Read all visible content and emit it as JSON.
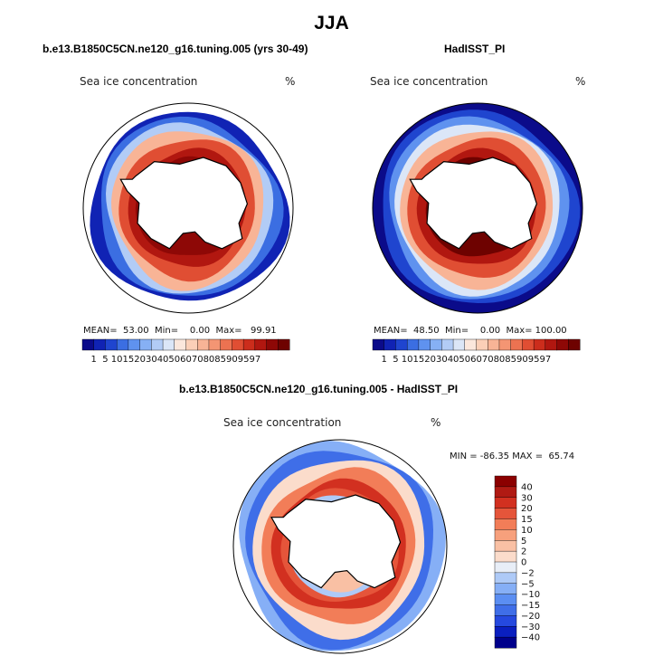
{
  "figure": {
    "title": "JJA",
    "colors": {
      "ice_scale": [
        "#0b0b8a",
        "#1023b4",
        "#1f45cf",
        "#3b6ee2",
        "#5f92ef",
        "#86b0f4",
        "#b2ccf6",
        "#dbe6f7",
        "#fbe7dc",
        "#fbcfb7",
        "#f8b496",
        "#f49573",
        "#ec7251",
        "#e04e33",
        "#cc2d1c",
        "#b11710",
        "#8e0806",
        "#6e0200"
      ],
      "diff_scale": [
        "#00008b",
        "#0a1fc0",
        "#2549df",
        "#3f6ee8",
        "#5b8ef2",
        "#86aff6",
        "#aecaf7",
        "#e8eef7",
        "#fbdccb",
        "#f9c0a4",
        "#f7a07c",
        "#f27d58",
        "#e5553a",
        "#d23020",
        "#b01a13",
        "#8b0000"
      ],
      "land": "#ffffff",
      "coast": "#000000"
    },
    "panels": {
      "left": {
        "title": "b.e13.B1850C5CN.ne120_g16.tuning.005 (yrs 30-49)",
        "variable": "Sea ice concentration",
        "units": "%",
        "stats": "MEAN=  53.00  Min=    0.00  Max=   99.91",
        "colorbar_labels": [
          "1",
          "5",
          "10",
          "15",
          "20",
          "30",
          "40",
          "50",
          "60",
          "70",
          "80",
          "85",
          "90",
          "95",
          "97"
        ]
      },
      "right": {
        "title": "HadISST_PI",
        "variable": "Sea ice concentration",
        "units": "%",
        "stats": "MEAN=  48.50  Min=    0.00  Max= 100.00",
        "colorbar_labels": [
          "1",
          "5",
          "10",
          "15",
          "20",
          "30",
          "40",
          "50",
          "60",
          "70",
          "80",
          "85",
          "90",
          "95",
          "97"
        ]
      },
      "diff": {
        "title": "b.e13.B1850C5CN.ne120_g16.tuning.005 - HadISST_PI",
        "variable": "Sea ice concentration",
        "units": "%",
        "stats": "MIN = -86.35 MAX =  65.74",
        "colorbar_labels": [
          "40",
          "30",
          "20",
          "15",
          "10",
          "5",
          "2",
          "0",
          "−2",
          "−5",
          "−10",
          "−15",
          "−20",
          "−30",
          "−40"
        ]
      }
    }
  }
}
